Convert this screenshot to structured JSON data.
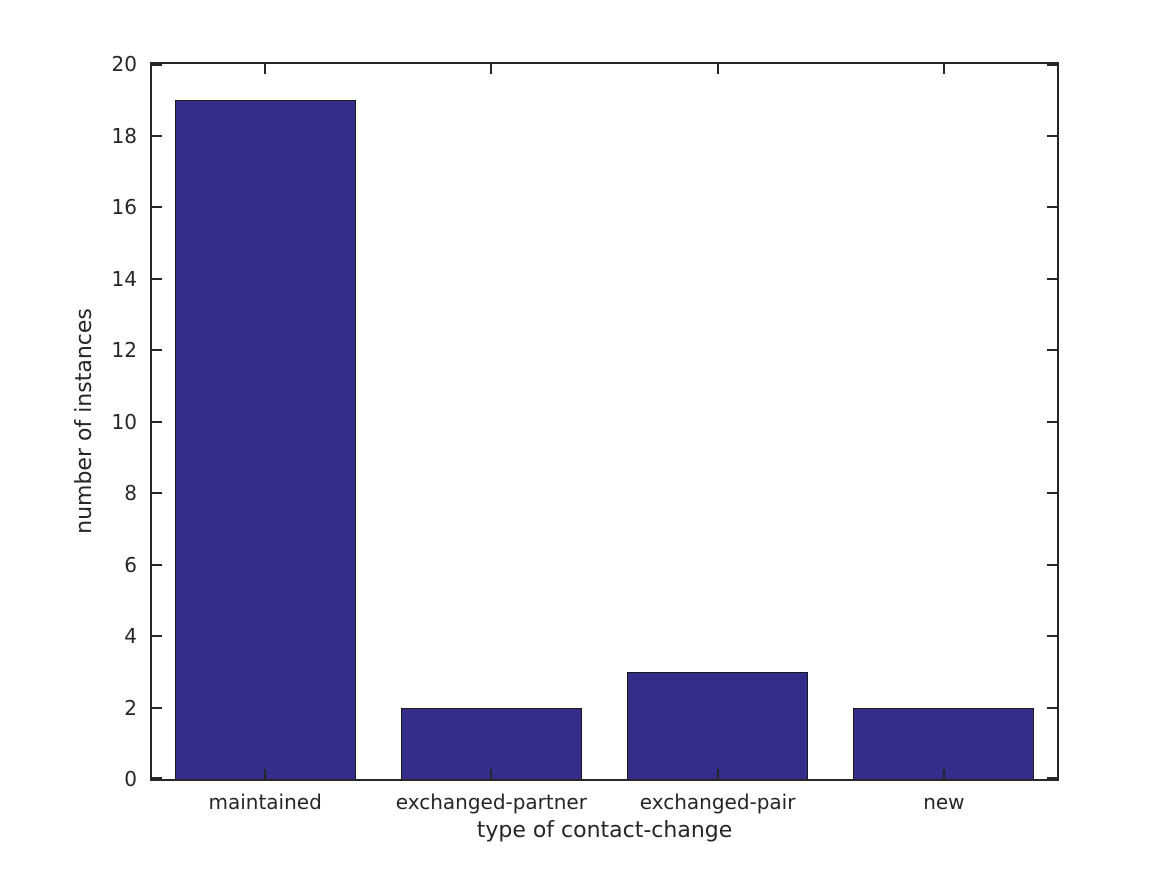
{
  "chart_data": {
    "type": "bar",
    "title": "",
    "categories": [
      "maintained",
      "exchanged-partner",
      "exchanged-pair",
      "new"
    ],
    "values": [
      19,
      2,
      3,
      2
    ],
    "xlabel": "type of contact-change",
    "ylabel": "number of instances",
    "ylim": [
      0,
      20
    ],
    "yticks": [
      0,
      2,
      4,
      6,
      8,
      10,
      12,
      14,
      16,
      18,
      20
    ],
    "bar_width_frac": 0.8,
    "grid": false,
    "legend": null,
    "colors": {
      "bar_fill": "#342d8a",
      "bar_edge": "#1a1a1a",
      "axis": "#262626",
      "text": "#262626",
      "background": "#ffffff"
    }
  }
}
